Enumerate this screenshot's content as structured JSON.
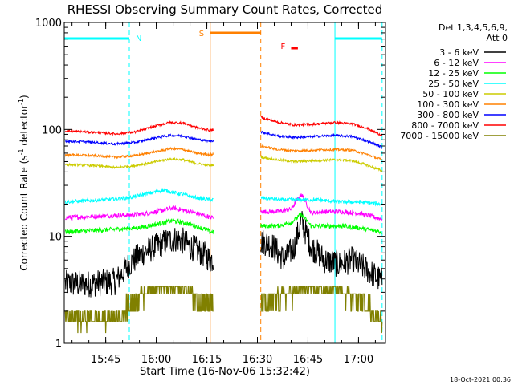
{
  "chart_data": {
    "type": "line",
    "title": "RHESSI Observing Summary Count Rates, Corrected",
    "xlabel": "Start Time (16-Nov-06 15:32:42)",
    "ylabel": "Corrected Count Rate (s",
    "ylabel_sup1": "-1",
    "ylabel_mid": " detector",
    "ylabel_sup2": "-1",
    "ylabel_end": ")",
    "yscale": "log",
    "ylim": [
      1,
      1000
    ],
    "xlim": [
      "15:32:42",
      "17:08:00"
    ],
    "x_ticks": [
      "15:45",
      "16:00",
      "16:15",
      "16:30",
      "16:45",
      "17:00"
    ],
    "y_ticks": [
      "1",
      "10",
      "100",
      "1000"
    ],
    "grid": false,
    "legend_title": "Det 1,3,4,5,6,9,",
    "legend_subtitle": "Att 0",
    "legend_position": "right",
    "footer_date": "18-Oct-2021 00:36",
    "data_gap": [
      "16:17:00",
      "16:31:00"
    ],
    "night_intervals": [
      [
        "15:32:42",
        "15:52:00"
      ],
      [
        "16:53:00",
        "17:07:00"
      ]
    ],
    "saa_interval": [
      "16:16:00",
      "16:31:00"
    ],
    "flare_interval": [
      "16:40:00",
      "16:42:00"
    ],
    "flag_labels": {
      "night": "N",
      "saa": "S",
      "flare": "F"
    },
    "series": [
      {
        "name": "3 - 6 keV",
        "color": "#000000",
        "x": [
          "15:33",
          "15:40",
          "15:48",
          "15:52",
          "15:56",
          "16:00",
          "16:03",
          "16:06",
          "16:08",
          "16:10",
          "16:12",
          "16:15",
          "16:16",
          "16:31",
          "16:34",
          "16:38",
          "16:41",
          "16:43",
          "16:46",
          "16:50",
          "16:54",
          "16:58",
          "17:02",
          "17:07"
        ],
        "values": [
          3.6,
          3.6,
          3.8,
          5.5,
          7,
          8,
          9,
          9.5,
          9,
          8,
          7.5,
          6.5,
          6,
          9,
          8.5,
          6,
          8,
          14,
          8,
          6,
          5.5,
          6,
          5,
          3.8
        ]
      },
      {
        "name": "6 - 12 keV",
        "color": "#ff00ff",
        "x": [
          "15:33",
          "15:45",
          "15:55",
          "16:00",
          "16:05",
          "16:10",
          "16:15",
          "16:16",
          "16:31",
          "16:36",
          "16:40",
          "16:43",
          "16:46",
          "16:50",
          "16:55",
          "17:00",
          "17:07"
        ],
        "values": [
          15,
          15.5,
          16,
          17,
          18.5,
          17,
          15.5,
          15,
          17,
          17,
          18,
          25,
          16.5,
          17,
          17,
          16.5,
          14.5
        ]
      },
      {
        "name": "12 - 25 keV",
        "color": "#00ff00",
        "x": [
          "15:33",
          "15:45",
          "15:55",
          "16:00",
          "16:05",
          "16:10",
          "16:15",
          "16:16",
          "16:31",
          "16:36",
          "16:40",
          "16:43",
          "16:46",
          "16:50",
          "16:55",
          "17:00",
          "17:07"
        ],
        "values": [
          11,
          11.5,
          12,
          13,
          14,
          13,
          11.5,
          11,
          12.5,
          12.5,
          13.5,
          16,
          12.5,
          12.5,
          12.5,
          12,
          11
        ]
      },
      {
        "name": "25 - 50 keV",
        "color": "#00ffff",
        "x": [
          "15:33",
          "15:45",
          "15:52",
          "15:57",
          "16:02",
          "16:07",
          "16:12",
          "16:16",
          "16:31",
          "16:37",
          "16:43",
          "16:48",
          "16:54",
          "17:00",
          "17:07"
        ],
        "values": [
          21,
          22,
          23,
          25,
          27,
          25,
          23,
          22,
          23,
          22,
          22,
          22,
          21,
          21,
          20
        ]
      },
      {
        "name": "50 - 100 keV",
        "color": "#cccc00",
        "x": [
          "15:33",
          "15:41",
          "15:48",
          "15:54",
          "16:00",
          "16:04",
          "16:08",
          "16:12",
          "16:16",
          "16:31",
          "16:36",
          "16:41",
          "16:47",
          "16:53",
          "16:58",
          "17:02",
          "17:07"
        ],
        "values": [
          47,
          46,
          44,
          46,
          50,
          53,
          52,
          48,
          46,
          55,
          52,
          50,
          51,
          52,
          51,
          47,
          41
        ]
      },
      {
        "name": "100 - 300 keV",
        "color": "#ff8000",
        "x": [
          "15:33",
          "15:41",
          "15:48",
          "15:54",
          "16:00",
          "16:04",
          "16:08",
          "16:12",
          "16:16",
          "16:31",
          "16:36",
          "16:41",
          "16:47",
          "16:53",
          "16:58",
          "17:02",
          "17:07"
        ],
        "values": [
          58,
          57,
          55,
          57,
          62,
          66,
          65,
          60,
          58,
          70,
          65,
          63,
          64,
          65,
          64,
          59,
          52
        ]
      },
      {
        "name": "300 - 800 keV",
        "color": "#0000ff",
        "x": [
          "15:33",
          "15:41",
          "15:48",
          "15:54",
          "16:00",
          "16:04",
          "16:08",
          "16:12",
          "16:16",
          "16:31",
          "16:36",
          "16:41",
          "16:47",
          "16:53",
          "16:58",
          "17:02",
          "17:07"
        ],
        "values": [
          78,
          76,
          73,
          76,
          84,
          88,
          87,
          81,
          78,
          95,
          87,
          84,
          86,
          88,
          86,
          79,
          68
        ]
      },
      {
        "name": "800 - 7000 keV",
        "color": "#ff0000",
        "x": [
          "15:33",
          "15:41",
          "15:48",
          "15:54",
          "16:00",
          "16:04",
          "16:08",
          "16:12",
          "16:16",
          "16:31",
          "16:36",
          "16:41",
          "16:47",
          "16:53",
          "16:58",
          "17:02",
          "17:07"
        ],
        "values": [
          97,
          94,
          91,
          95,
          108,
          116,
          115,
          104,
          98,
          130,
          117,
          110,
          112,
          116,
          113,
          104,
          88
        ]
      },
      {
        "name": "7000 - 15000 keV",
        "color": "#808000",
        "x": [
          "15:33",
          "15:45",
          "15:50",
          "15:53",
          "15:57",
          "16:00",
          "16:04",
          "16:08",
          "16:12",
          "16:16",
          "16:31",
          "16:36",
          "16:41",
          "16:45",
          "16:50",
          "16:55",
          "17:00",
          "17:04",
          "17:07"
        ],
        "values": [
          1.7,
          1.7,
          1.8,
          2.5,
          3.0,
          3.5,
          3.4,
          3.2,
          2.6,
          2.3,
          2.3,
          2.6,
          3.0,
          3.2,
          3.3,
          3.1,
          2.5,
          2.0,
          1.7
        ]
      }
    ]
  }
}
